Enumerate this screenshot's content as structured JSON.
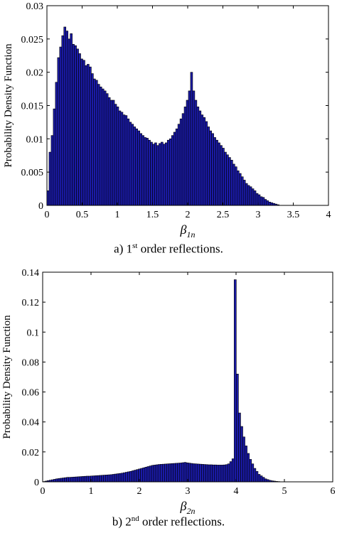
{
  "colors": {
    "bar_fill": "#1a1aa6",
    "bar_edge": "#000000"
  },
  "chart_data": [
    {
      "type": "bar",
      "subtype": "histogram",
      "ylabel": "Probability Density Function",
      "xlabel": "β1n",
      "xlabel_parts": {
        "symbol": "β",
        "subscript": "1n"
      },
      "xlim": [
        0,
        4
      ],
      "ylim": [
        0,
        0.03
      ],
      "xticks": [
        0,
        0.5,
        1,
        1.5,
        2,
        2.5,
        3,
        3.5,
        4
      ],
      "xtick_labels": [
        "0",
        "0.5",
        "1",
        "1.5",
        "2",
        "2.5",
        "3",
        "3.5",
        "4"
      ],
      "yticks": [
        0,
        0.005,
        0.01,
        0.015,
        0.02,
        0.025,
        0.03
      ],
      "ytick_labels": [
        "0",
        "0.005",
        "0.01",
        "0.015",
        "0.02",
        "0.025",
        "0.03"
      ],
      "bin_width": 0.03,
      "bins_start": 0,
      "values": [
        0.0022,
        0.008,
        0.0105,
        0.0145,
        0.0185,
        0.0222,
        0.0238,
        0.0255,
        0.0268,
        0.0262,
        0.025,
        0.0258,
        0.0242,
        0.024,
        0.0235,
        0.0228,
        0.022,
        0.0218,
        0.021,
        0.0212,
        0.0208,
        0.0198,
        0.019,
        0.0188,
        0.0182,
        0.0178,
        0.0175,
        0.0172,
        0.0168,
        0.0162,
        0.0158,
        0.0158,
        0.0152,
        0.0148,
        0.0142,
        0.014,
        0.0136,
        0.0135,
        0.013,
        0.0125,
        0.0122,
        0.0118,
        0.0115,
        0.0112,
        0.0108,
        0.0105,
        0.0102,
        0.0101,
        0.0098,
        0.0095,
        0.0092,
        0.0094,
        0.009,
        0.0093,
        0.0095,
        0.0092,
        0.0094,
        0.0098,
        0.01,
        0.0105,
        0.011,
        0.0115,
        0.0122,
        0.013,
        0.0138,
        0.0148,
        0.0158,
        0.0172,
        0.02,
        0.0172,
        0.0158,
        0.0148,
        0.0142,
        0.0136,
        0.0132,
        0.0126,
        0.0118,
        0.0112,
        0.0108,
        0.0102,
        0.0098,
        0.0094,
        0.009,
        0.0086,
        0.008,
        0.0076,
        0.0072,
        0.0068,
        0.0062,
        0.0058,
        0.0052,
        0.0048,
        0.0043,
        0.0038,
        0.0033,
        0.003,
        0.0028,
        0.0025,
        0.0022,
        0.0018,
        0.0016,
        0.0013,
        0.0012,
        0.0009,
        0.0007,
        0.0005,
        0.0004,
        0.0003,
        0.0002,
        0.0001
      ]
    },
    {
      "type": "bar",
      "subtype": "histogram",
      "ylabel": "Probability Density Function",
      "xlabel": "β2n",
      "xlabel_parts": {
        "symbol": "β",
        "subscript": "2n"
      },
      "xlim": [
        0,
        6
      ],
      "ylim": [
        0,
        0.14
      ],
      "xticks": [
        0,
        1,
        2,
        3,
        4,
        5,
        6
      ],
      "xtick_labels": [
        "0",
        "1",
        "2",
        "3",
        "4",
        "5",
        "6"
      ],
      "yticks": [
        0,
        0.02,
        0.04,
        0.06,
        0.08,
        0.1,
        0.12,
        0.14
      ],
      "ytick_labels": [
        "0",
        "0.02",
        "0.04",
        "0.06",
        "0.08",
        "0.1",
        "0.12",
        "0.14"
      ],
      "bin_width": 0.045,
      "bins_start": 0,
      "values": [
        0.0002,
        0.0005,
        0.0008,
        0.0011,
        0.0014,
        0.0017,
        0.002,
        0.0022,
        0.0024,
        0.0026,
        0.0028,
        0.003,
        0.003,
        0.0031,
        0.0032,
        0.0033,
        0.0034,
        0.0035,
        0.0036,
        0.0037,
        0.0038,
        0.0038,
        0.0039,
        0.004,
        0.0041,
        0.0042,
        0.0043,
        0.0044,
        0.0045,
        0.0046,
        0.0047,
        0.0048,
        0.005,
        0.0052,
        0.0054,
        0.0056,
        0.0058,
        0.0061,
        0.0064,
        0.0067,
        0.007,
        0.0074,
        0.0078,
        0.0082,
        0.0086,
        0.009,
        0.0094,
        0.0098,
        0.0102,
        0.0106,
        0.011,
        0.0112,
        0.0114,
        0.0116,
        0.0117,
        0.0118,
        0.0119,
        0.012,
        0.0121,
        0.0122,
        0.0123,
        0.0124,
        0.0125,
        0.0126,
        0.0128,
        0.013,
        0.0127,
        0.0125,
        0.0123,
        0.0121,
        0.012,
        0.0119,
        0.0118,
        0.0117,
        0.0116,
        0.0115,
        0.0114,
        0.0114,
        0.0113,
        0.0113,
        0.0112,
        0.0112,
        0.0112,
        0.0113,
        0.0115,
        0.012,
        0.0135,
        0.0154,
        0.135,
        0.072,
        0.046,
        0.037,
        0.03,
        0.024,
        0.019,
        0.015,
        0.012,
        0.009,
        0.007,
        0.005,
        0.004,
        0.003,
        0.002,
        0.0015,
        0.001,
        0.0007,
        0.0005,
        0.0003,
        0.0002,
        0.0001,
        0.0001
      ]
    }
  ],
  "captions": {
    "a": {
      "prefix": "a) 1",
      "sup": "st",
      "suffix": " order reflections."
    },
    "b": {
      "prefix": "b) 2",
      "sup": "nd",
      "suffix": " order reflections."
    }
  }
}
